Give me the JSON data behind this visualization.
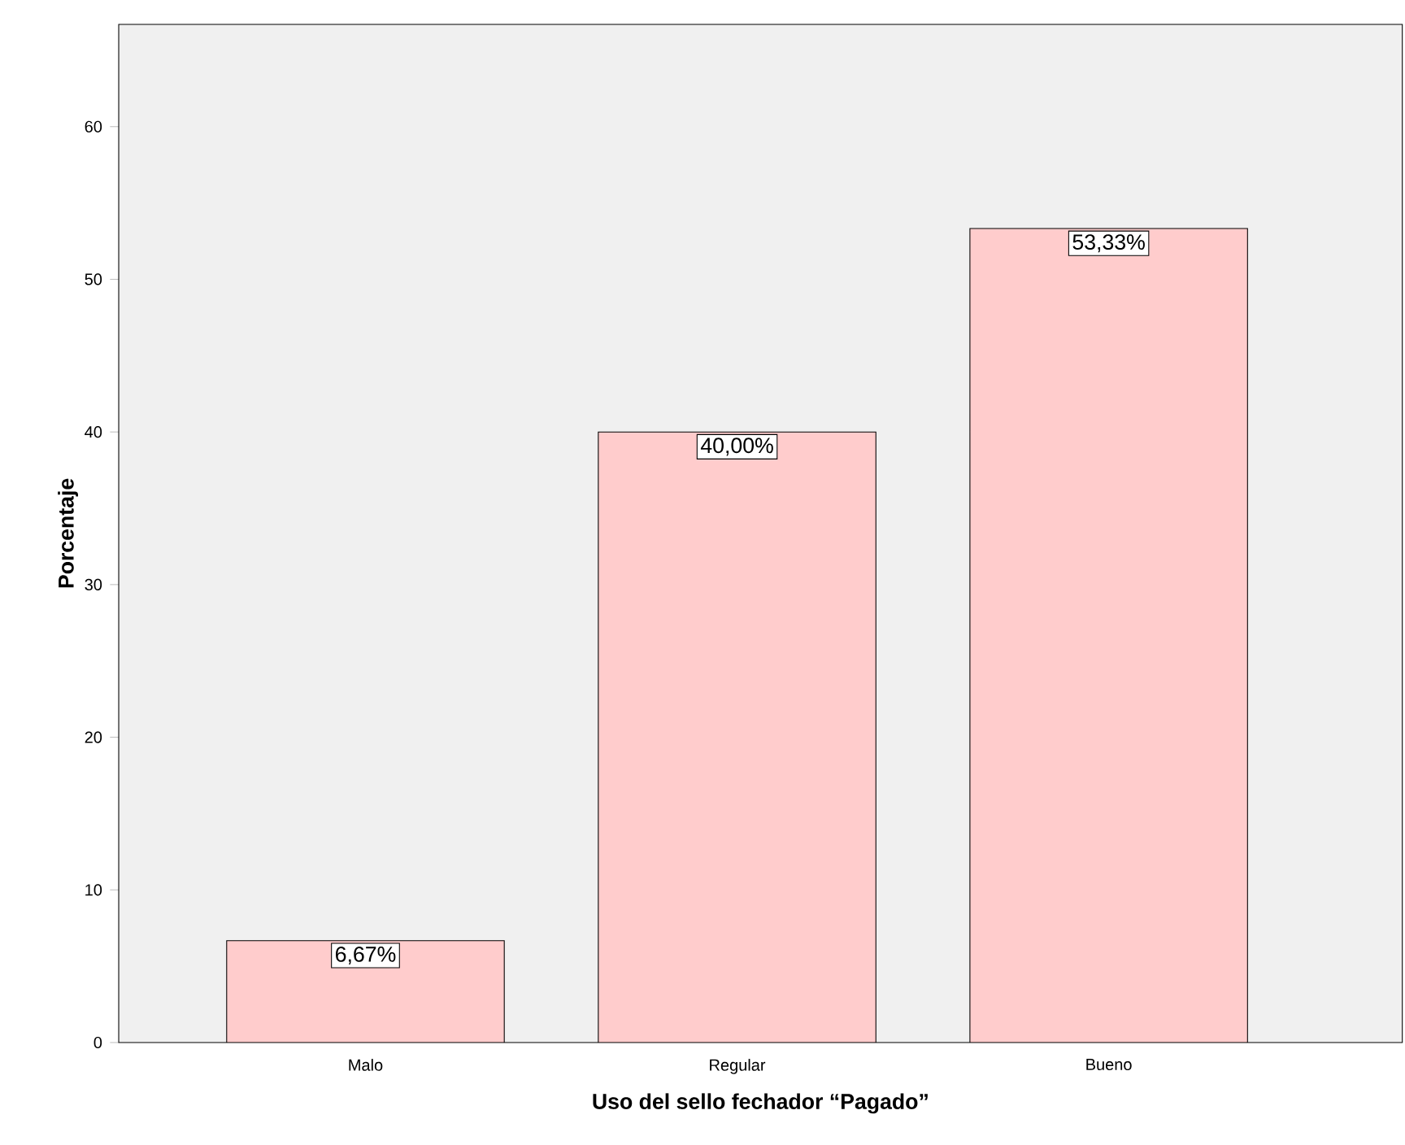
{
  "chart_data": {
    "type": "bar",
    "xlabel": "Uso del sello fechador “Pagado”",
    "ylabel": "Porcentaje",
    "categories": [
      "Malo",
      "Regular",
      "Bueno"
    ],
    "values": [
      6.67,
      40.0,
      53.33
    ],
    "value_labels": [
      "6,67%",
      "40,00%",
      "53,33%"
    ],
    "color": "#ffcccc",
    "ylim": [
      0,
      66.7
    ],
    "yticks": [
      0,
      10,
      20,
      30,
      40,
      50,
      60
    ]
  }
}
